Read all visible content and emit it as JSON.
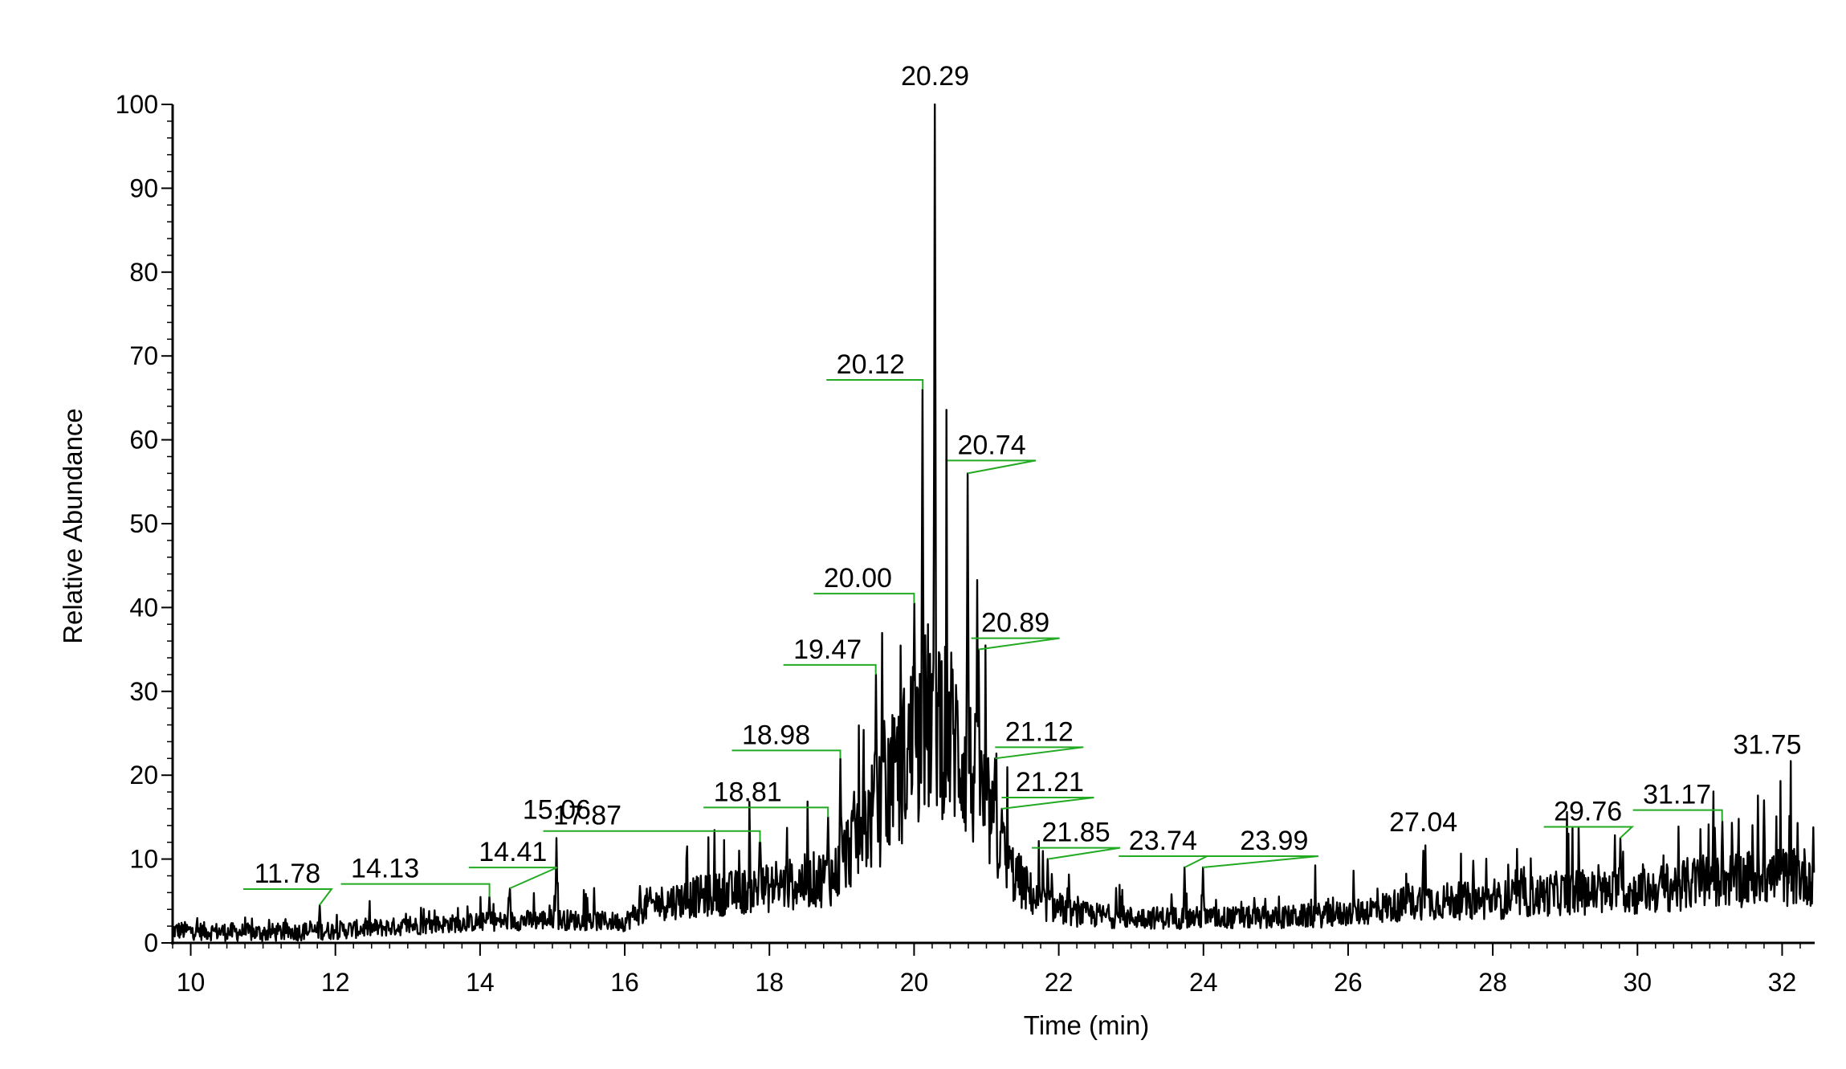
{
  "chart_data": {
    "type": "line",
    "title": "",
    "xlabel": "Time (min)",
    "ylabel": "Relative Abundance",
    "xlim": [
      9.75,
      32.45
    ],
    "ylim": [
      0,
      100
    ],
    "x_ticks": [
      10,
      12,
      14,
      16,
      18,
      20,
      22,
      24,
      26,
      28,
      30,
      32
    ],
    "x_tick_labels": [
      "10",
      "12",
      "14",
      "16",
      "18",
      "20",
      "22",
      "24",
      "26",
      "28",
      "30",
      "32"
    ],
    "y_ticks": [
      0,
      10,
      20,
      30,
      40,
      50,
      60,
      70,
      80,
      90,
      100
    ],
    "y_tick_labels": [
      "0",
      "10",
      "20",
      "30",
      "40",
      "50",
      "60",
      "70",
      "80",
      "90",
      "100"
    ],
    "grid": false,
    "legend": "none",
    "line_color": "#000000",
    "label_line_color": "#22aa22",
    "peaks": [
      {
        "x": 11.78,
        "y": 4.5,
        "label": "11.78"
      },
      {
        "x": 14.13,
        "y": 5.5,
        "label": "14.13"
      },
      {
        "x": 14.41,
        "y": 6.5,
        "label": "14.41"
      },
      {
        "x": 15.06,
        "y": 12.5,
        "label": "15.06"
      },
      {
        "x": 17.87,
        "y": 12.0,
        "label": "17.87"
      },
      {
        "x": 18.81,
        "y": 15.0,
        "label": "18.81"
      },
      {
        "x": 18.98,
        "y": 22.0,
        "label": "18.98"
      },
      {
        "x": 19.47,
        "y": 32.0,
        "label": "19.47"
      },
      {
        "x": 20.0,
        "y": 40.5,
        "label": "20.00"
      },
      {
        "x": 20.12,
        "y": 66.0,
        "label": "20.12"
      },
      {
        "x": 20.29,
        "y": 100.0,
        "label": "20.29"
      },
      {
        "x": 20.74,
        "y": 56.0,
        "label": "20.74"
      },
      {
        "x": 20.89,
        "y": 35.0,
        "label": "20.89"
      },
      {
        "x": 21.12,
        "y": 22.0,
        "label": "21.12"
      },
      {
        "x": 21.21,
        "y": 16.0,
        "label": "21.21"
      },
      {
        "x": 21.85,
        "y": 10.0,
        "label": "21.85"
      },
      {
        "x": 23.74,
        "y": 9.0,
        "label": "23.74"
      },
      {
        "x": 23.99,
        "y": 9.0,
        "label": "23.99"
      },
      {
        "x": 27.04,
        "y": 11.0,
        "label": "27.04"
      },
      {
        "x": 29.76,
        "y": 12.5,
        "label": "29.76"
      },
      {
        "x": 31.17,
        "y": 14.5,
        "label": "31.17"
      },
      {
        "x": 31.75,
        "y": 17.0,
        "label": "31.75"
      }
    ],
    "baseline": [
      [
        9.75,
        1.5
      ],
      [
        11.0,
        1.2
      ],
      [
        12.0,
        1.5
      ],
      [
        13.0,
        2.0
      ],
      [
        14.0,
        2.5
      ],
      [
        15.0,
        2.8
      ],
      [
        16.0,
        2.5
      ],
      [
        16.3,
        4.5
      ],
      [
        17.0,
        5.5
      ],
      [
        18.0,
        6.5
      ],
      [
        18.9,
        8.0
      ],
      [
        19.2,
        13.0
      ],
      [
        19.6,
        17.0
      ],
      [
        20.0,
        24.0
      ],
      [
        20.3,
        28.0
      ],
      [
        20.7,
        22.0
      ],
      [
        21.0,
        16.0
      ],
      [
        21.3,
        9.0
      ],
      [
        21.7,
        5.0
      ],
      [
        22.2,
        3.5
      ],
      [
        23.0,
        3.0
      ],
      [
        24.0,
        3.0
      ],
      [
        25.0,
        3.0
      ],
      [
        26.0,
        3.5
      ],
      [
        27.0,
        5.0
      ],
      [
        28.0,
        5.0
      ],
      [
        29.0,
        6.0
      ],
      [
        30.0,
        6.0
      ],
      [
        31.0,
        7.5
      ],
      [
        32.45,
        8.0
      ]
    ]
  }
}
